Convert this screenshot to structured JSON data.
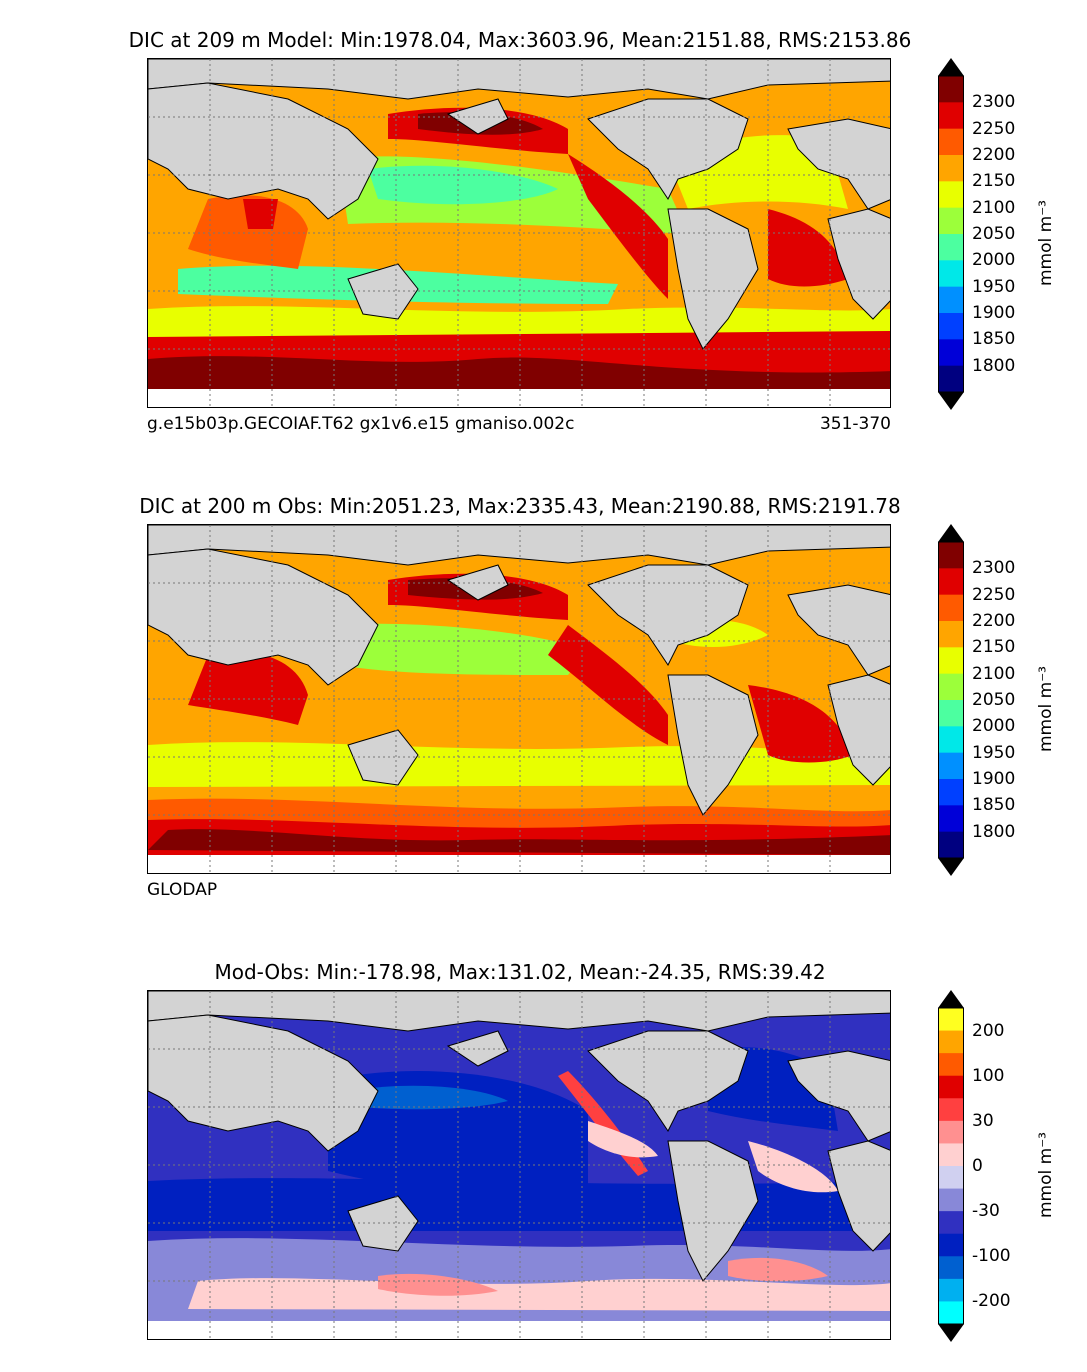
{
  "panels": [
    {
      "title": "DIC at 209 m Model: Min:1978.04, Max:3603.96, Mean:2151.88, RMS:2153.86",
      "subtitle_left": "g.e15b03p.GECOIAF.T62 gx1v6.e15 gmaniso.002c",
      "subtitle_right": "351-370",
      "colorbar": {
        "unit": "mmol m⁻³",
        "tick_labels": [
          "2300",
          "2250",
          "2200",
          "2150",
          "2100",
          "2050",
          "2000",
          "1950",
          "1900",
          "1850",
          "1800"
        ],
        "colors": [
          "#800000",
          "#e00000",
          "#ff5a00",
          "#ffa500",
          "#e8ff00",
          "#9cff3a",
          "#4cffa0",
          "#00e8e8",
          "#0090ff",
          "#0040ff",
          "#0000d8",
          "#000080"
        ]
      }
    },
    {
      "title": "DIC at 200 m Obs: Min:2051.23, Max:2335.43, Mean:2190.88, RMS:2191.78",
      "subtitle_left": "GLODAP",
      "subtitle_right": "",
      "colorbar": {
        "unit": "mmol m⁻³",
        "tick_labels": [
          "2300",
          "2250",
          "2200",
          "2150",
          "2100",
          "2050",
          "2000",
          "1950",
          "1900",
          "1850",
          "1800"
        ],
        "colors": [
          "#800000",
          "#e00000",
          "#ff5a00",
          "#ffa500",
          "#e8ff00",
          "#9cff3a",
          "#4cffa0",
          "#00e8e8",
          "#0090ff",
          "#0040ff",
          "#0000d8",
          "#000080"
        ]
      }
    },
    {
      "title": "Mod-Obs: Min:-178.98, Max:131.02, Mean:-24.35, RMS:39.42",
      "subtitle_left": "",
      "subtitle_right": "",
      "colorbar": {
        "unit": "mmol m⁻³",
        "tick_labels": [
          "200",
          "100",
          "30",
          "0",
          "-30",
          "-100",
          "-200"
        ],
        "colors": [
          "#ffff20",
          "#ffa500",
          "#ff5a00",
          "#e00000",
          "#ff4040",
          "#ff9090",
          "#ffd0d0",
          "#d0d0f0",
          "#8888d8",
          "#3030c0",
          "#0020c0",
          "#0060d0",
          "#00b0f0",
          "#00ffff"
        ]
      }
    }
  ],
  "colors": {
    "land": "#d3d3d3",
    "grid": "#777777"
  }
}
